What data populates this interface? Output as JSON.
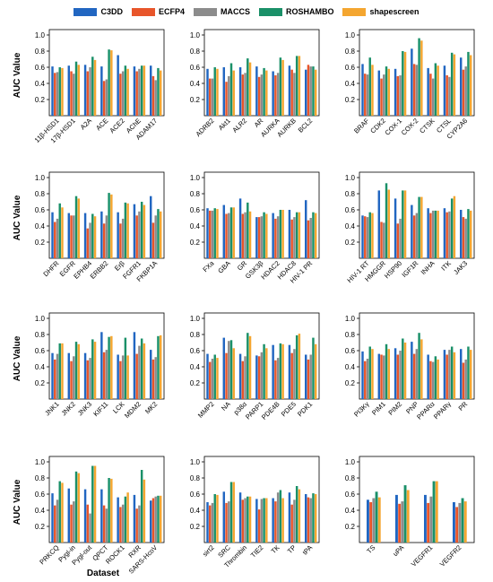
{
  "legend": [
    {
      "name": "C3DD",
      "color": "#2166c1"
    },
    {
      "name": "ECFP4",
      "color": "#e8552a"
    },
    {
      "name": "MACCS",
      "color": "#8c8c8c"
    },
    {
      "name": "ROSHAMBO",
      "color": "#1a9068"
    },
    {
      "name": "shapescreen",
      "color": "#f4a630"
    }
  ],
  "y_axis_label": "AUC Value",
  "x_axis_label": "Dataset",
  "chart_data": [
    {
      "type": "bar",
      "ylim": [
        0,
        1.0
      ],
      "yticks": [
        0.2,
        0.4,
        0.6,
        0.8,
        1.0
      ],
      "categories": [
        "11β-HSD1",
        "17β-HSD1",
        "A2A",
        "ACE",
        "ACE2",
        "AChE",
        "ADAM17"
      ],
      "series": [
        {
          "name": "C3DD",
          "values": [
            0.61,
            0.62,
            0.63,
            0.61,
            0.75,
            0.61,
            0.62
          ]
        },
        {
          "name": "ECFP4",
          "values": [
            0.53,
            0.55,
            0.55,
            0.43,
            0.52,
            0.55,
            0.49
          ]
        },
        {
          "name": "MACCS",
          "values": [
            0.54,
            0.52,
            0.6,
            0.45,
            0.55,
            0.58,
            0.44
          ]
        },
        {
          "name": "ROSHAMBO",
          "values": [
            0.6,
            0.67,
            0.73,
            0.82,
            0.62,
            0.62,
            0.59
          ]
        },
        {
          "name": "shapescreen",
          "values": [
            0.59,
            0.63,
            0.69,
            0.81,
            0.58,
            0.62,
            0.56
          ]
        }
      ]
    },
    {
      "type": "bar",
      "ylim": [
        0,
        1.0
      ],
      "yticks": [
        0.2,
        0.4,
        0.6,
        0.8,
        1.0
      ],
      "categories": [
        "ADRB2",
        "Akt1",
        "ALR2",
        "AR",
        "AURKA",
        "AURKB",
        "BCL2"
      ],
      "series": [
        {
          "name": "C3DD",
          "values": [
            0.58,
            0.6,
            0.6,
            0.61,
            0.55,
            0.62,
            0.57
          ]
        },
        {
          "name": "ECFP4",
          "values": [
            0.46,
            0.42,
            0.51,
            0.48,
            0.5,
            0.57,
            0.63
          ]
        },
        {
          "name": "MACCS",
          "values": [
            0.46,
            0.49,
            0.53,
            0.51,
            0.53,
            0.53,
            0.61
          ]
        },
        {
          "name": "ROSHAMBO",
          "values": [
            0.6,
            0.65,
            0.71,
            0.59,
            0.72,
            0.74,
            0.61
          ]
        },
        {
          "name": "shapescreen",
          "values": [
            0.58,
            0.56,
            0.66,
            0.56,
            0.69,
            0.74,
            0.57
          ]
        }
      ]
    },
    {
      "type": "bar",
      "ylim": [
        0,
        1.0
      ],
      "yticks": [
        0.2,
        0.4,
        0.6,
        0.8,
        1.0
      ],
      "categories": [
        "BRAF",
        "CDK2",
        "COX-1",
        "COX-2",
        "CTSK",
        "CTSL",
        "CYP2A6"
      ],
      "series": [
        {
          "name": "C3DD",
          "values": [
            0.64,
            0.56,
            0.58,
            0.83,
            0.59,
            0.62,
            0.72
          ]
        },
        {
          "name": "ECFP4",
          "values": [
            0.52,
            0.46,
            0.49,
            0.64,
            0.52,
            0.5,
            0.57
          ]
        },
        {
          "name": "MACCS",
          "values": [
            0.51,
            0.51,
            0.5,
            0.63,
            0.46,
            0.48,
            0.61
          ]
        },
        {
          "name": "ROSHAMBO",
          "values": [
            0.72,
            0.61,
            0.8,
            0.96,
            0.65,
            0.78,
            0.79
          ]
        },
        {
          "name": "shapescreen",
          "values": [
            0.63,
            0.58,
            0.79,
            0.93,
            0.62,
            0.76,
            0.75
          ]
        }
      ]
    },
    {
      "type": "bar",
      "ylim": [
        0,
        1.0
      ],
      "yticks": [
        0.2,
        0.4,
        0.6,
        0.8,
        1.0
      ],
      "categories": [
        "DHFR",
        "EGFR",
        "EPHB4",
        "ERBB2",
        "Erβ",
        "FGFR1",
        "FKBP1A"
      ],
      "series": [
        {
          "name": "C3DD",
          "values": [
            0.57,
            0.56,
            0.56,
            0.58,
            0.57,
            0.67,
            0.77
          ]
        },
        {
          "name": "ECFP4",
          "values": [
            0.45,
            0.53,
            0.37,
            0.43,
            0.43,
            0.53,
            0.44
          ]
        },
        {
          "name": "MACCS",
          "values": [
            0.49,
            0.53,
            0.44,
            0.53,
            0.49,
            0.58,
            0.53
          ]
        },
        {
          "name": "ROSHAMBO",
          "values": [
            0.68,
            0.77,
            0.55,
            0.81,
            0.69,
            0.7,
            0.61
          ]
        },
        {
          "name": "shapescreen",
          "values": [
            0.63,
            0.74,
            0.52,
            0.79,
            0.68,
            0.66,
            0.58
          ]
        }
      ]
    },
    {
      "type": "bar",
      "ylim": [
        0,
        1.0
      ],
      "yticks": [
        0.2,
        0.4,
        0.6,
        0.8,
        1.0
      ],
      "categories": [
        "FXa",
        "GBA",
        "GR",
        "GSK3β",
        "HDAC2",
        "HDAC8",
        "HIV-1 PR"
      ],
      "series": [
        {
          "name": "C3DD",
          "values": [
            0.62,
            0.66,
            0.74,
            0.51,
            0.56,
            0.6,
            0.72
          ]
        },
        {
          "name": "ECFP4",
          "values": [
            0.59,
            0.55,
            0.55,
            0.51,
            0.49,
            0.48,
            0.47
          ]
        },
        {
          "name": "MACCS",
          "values": [
            0.59,
            0.56,
            0.57,
            0.52,
            0.52,
            0.51,
            0.5
          ]
        },
        {
          "name": "ROSHAMBO",
          "values": [
            0.62,
            0.63,
            0.69,
            0.57,
            0.6,
            0.57,
            0.57
          ]
        },
        {
          "name": "shapescreen",
          "values": [
            0.61,
            0.63,
            0.58,
            0.55,
            0.6,
            0.57,
            0.56
          ]
        }
      ]
    },
    {
      "type": "bar",
      "ylim": [
        0,
        1.0
      ],
      "yticks": [
        0.2,
        0.4,
        0.6,
        0.8,
        1.0
      ],
      "categories": [
        "HIV-1 RT",
        "HMGGR",
        "HSP90",
        "IGF1R",
        "INHA",
        "ITK",
        "JAK3"
      ],
      "series": [
        {
          "name": "C3DD",
          "values": [
            0.53,
            0.84,
            0.74,
            0.66,
            0.62,
            0.62,
            0.6
          ]
        },
        {
          "name": "ECFP4",
          "values": [
            0.52,
            0.45,
            0.43,
            0.53,
            0.56,
            0.57,
            0.51
          ]
        },
        {
          "name": "MACCS",
          "values": [
            0.51,
            0.44,
            0.49,
            0.56,
            0.59,
            0.58,
            0.49
          ]
        },
        {
          "name": "ROSHAMBO",
          "values": [
            0.57,
            0.93,
            0.84,
            0.76,
            0.59,
            0.74,
            0.61
          ]
        },
        {
          "name": "shapescreen",
          "values": [
            0.56,
            0.85,
            0.84,
            0.76,
            0.59,
            0.77,
            0.59
          ]
        }
      ]
    },
    {
      "type": "bar",
      "ylim": [
        0,
        1.0
      ],
      "yticks": [
        0.2,
        0.4,
        0.6,
        0.8,
        1.0
      ],
      "categories": [
        "JNK1",
        "JNK2",
        "JNK3",
        "KIF11",
        "LCK",
        "MDM2",
        "MK2"
      ],
      "series": [
        {
          "name": "C3DD",
          "values": [
            0.57,
            0.57,
            0.57,
            0.83,
            0.55,
            0.83,
            0.61
          ]
        },
        {
          "name": "ECFP4",
          "values": [
            0.49,
            0.47,
            0.48,
            0.58,
            0.47,
            0.56,
            0.49
          ]
        },
        {
          "name": "MACCS",
          "values": [
            0.56,
            0.53,
            0.51,
            0.61,
            0.54,
            0.66,
            0.52
          ]
        },
        {
          "name": "ROSHAMBO",
          "values": [
            0.69,
            0.71,
            0.74,
            0.77,
            0.76,
            0.75,
            0.78
          ]
        },
        {
          "name": "shapescreen",
          "values": [
            0.69,
            0.68,
            0.71,
            0.78,
            0.54,
            0.69,
            0.79
          ]
        }
      ]
    },
    {
      "type": "bar",
      "ylim": [
        0,
        1.0
      ],
      "yticks": [
        0.2,
        0.4,
        0.6,
        0.8,
        1.0
      ],
      "categories": [
        "MMP2",
        "NA",
        "p38α",
        "PARP1",
        "PDE4B",
        "PDE5",
        "PDK1"
      ],
      "series": [
        {
          "name": "C3DD",
          "values": [
            0.56,
            0.76,
            0.56,
            0.54,
            0.67,
            0.67,
            0.55
          ]
        },
        {
          "name": "ECFP4",
          "values": [
            0.46,
            0.57,
            0.47,
            0.53,
            0.48,
            0.57,
            0.49
          ]
        },
        {
          "name": "MACCS",
          "values": [
            0.5,
            0.72,
            0.53,
            0.58,
            0.51,
            0.62,
            0.55
          ]
        },
        {
          "name": "ROSHAMBO",
          "values": [
            0.55,
            0.73,
            0.82,
            0.68,
            0.69,
            0.79,
            0.76
          ]
        },
        {
          "name": "shapescreen",
          "values": [
            0.51,
            0.63,
            0.78,
            0.63,
            0.68,
            0.81,
            0.68
          ]
        }
      ]
    },
    {
      "type": "bar",
      "ylim": [
        0,
        1.0
      ],
      "yticks": [
        0.2,
        0.4,
        0.6,
        0.8,
        1.0
      ],
      "categories": [
        "PI3Kγ",
        "PIM1",
        "PIM2",
        "PNP",
        "PPARα",
        "PPARγ",
        "PR"
      ],
      "series": [
        {
          "name": "C3DD",
          "values": [
            0.59,
            0.56,
            0.63,
            0.71,
            0.55,
            0.61,
            0.62
          ]
        },
        {
          "name": "ECFP4",
          "values": [
            0.47,
            0.55,
            0.55,
            0.56,
            0.47,
            0.55,
            0.45
          ]
        },
        {
          "name": "MACCS",
          "values": [
            0.5,
            0.54,
            0.6,
            0.62,
            0.46,
            0.61,
            0.49
          ]
        },
        {
          "name": "ROSHAMBO",
          "values": [
            0.65,
            0.68,
            0.75,
            0.82,
            0.53,
            0.65,
            0.65
          ]
        },
        {
          "name": "shapescreen",
          "values": [
            0.62,
            0.62,
            0.7,
            0.74,
            0.49,
            0.58,
            0.61
          ]
        }
      ]
    },
    {
      "type": "bar",
      "ylim": [
        0,
        1.0
      ],
      "yticks": [
        0.2,
        0.4,
        0.6,
        0.8,
        1.0
      ],
      "categories": [
        "PRKCQ",
        "Pygl-in",
        "Pygl-out",
        "QPCT",
        "ROCK1",
        "RXR",
        "SARS-HcoV"
      ],
      "series": [
        {
          "name": "C3DD",
          "values": [
            0.61,
            0.67,
            0.66,
            0.66,
            0.56,
            0.59,
            0.52
          ]
        },
        {
          "name": "ECFP4",
          "values": [
            0.46,
            0.47,
            0.47,
            0.46,
            0.44,
            0.42,
            0.55
          ]
        },
        {
          "name": "MACCS",
          "values": [
            0.53,
            0.51,
            0.36,
            0.42,
            0.47,
            0.46,
            0.57
          ]
        },
        {
          "name": "ROSHAMBO",
          "values": [
            0.76,
            0.88,
            0.95,
            0.8,
            0.57,
            0.9,
            0.58
          ]
        },
        {
          "name": "shapescreen",
          "values": [
            0.74,
            0.86,
            0.95,
            0.79,
            0.62,
            0.78,
            0.58
          ]
        }
      ]
    },
    {
      "type": "bar",
      "ylim": [
        0,
        1.0
      ],
      "yticks": [
        0.2,
        0.4,
        0.6,
        0.8,
        1.0
      ],
      "categories": [
        "sirt2",
        "SRC",
        "Thrombin",
        "TIE2",
        "TK",
        "TP",
        "tPA"
      ],
      "series": [
        {
          "name": "C3DD",
          "values": [
            0.5,
            0.63,
            0.62,
            0.54,
            0.55,
            0.62,
            0.6
          ]
        },
        {
          "name": "ECFP4",
          "values": [
            0.46,
            0.49,
            0.53,
            0.41,
            0.51,
            0.47,
            0.56
          ]
        },
        {
          "name": "MACCS",
          "values": [
            0.49,
            0.51,
            0.55,
            0.54,
            0.62,
            0.53,
            0.55
          ]
        },
        {
          "name": "ROSHAMBO",
          "values": [
            0.6,
            0.75,
            0.57,
            0.55,
            0.65,
            0.7,
            0.61
          ]
        },
        {
          "name": "shapescreen",
          "values": [
            0.59,
            0.75,
            0.57,
            0.55,
            0.55,
            0.66,
            0.6
          ]
        }
      ]
    },
    {
      "type": "bar",
      "ylim": [
        0,
        1.0
      ],
      "yticks": [
        0.2,
        0.4,
        0.6,
        0.8,
        1.0
      ],
      "categories": [
        "TS",
        "uPA",
        "VEGFR1",
        "VEGFR2"
      ],
      "series": [
        {
          "name": "C3DD",
          "values": [
            0.53,
            0.59,
            0.59,
            0.5
          ]
        },
        {
          "name": "ECFP4",
          "values": [
            0.5,
            0.48,
            0.49,
            0.44
          ]
        },
        {
          "name": "MACCS",
          "values": [
            0.55,
            0.51,
            0.57,
            0.49
          ]
        },
        {
          "name": "ROSHAMBO",
          "values": [
            0.63,
            0.71,
            0.76,
            0.55
          ]
        },
        {
          "name": "shapescreen",
          "values": [
            0.56,
            0.65,
            0.76,
            0.51
          ]
        }
      ]
    }
  ]
}
